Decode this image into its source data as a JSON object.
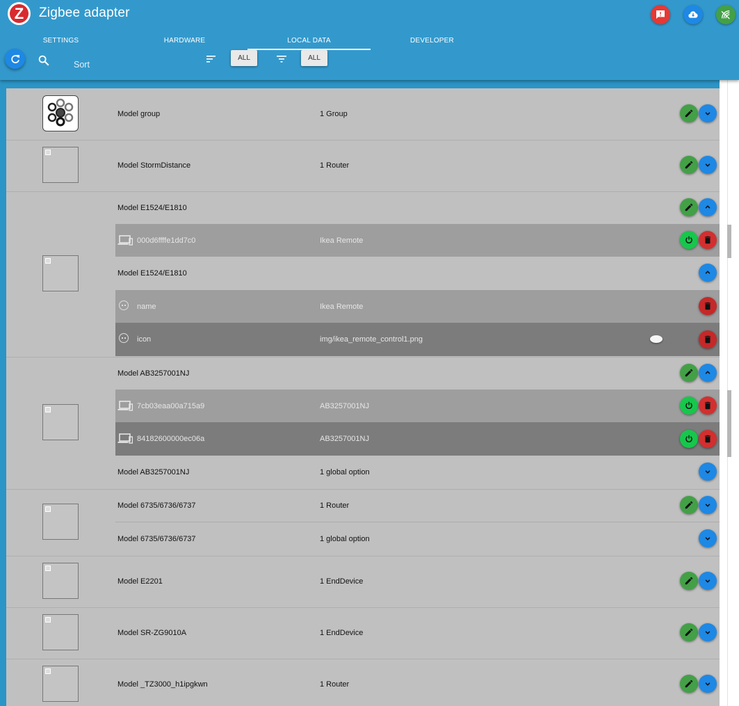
{
  "app": {
    "title": "Zigbee adapter",
    "logo_letter": "Z",
    "header_buttons": [
      {
        "name": "issue-report-icon",
        "color": "#e53935"
      },
      {
        "name": "cloud-download-icon",
        "color": "#1e88e5"
      },
      {
        "name": "signal-strength-icon",
        "color": "#43a047"
      }
    ]
  },
  "tabs": [
    "Settings",
    "Hardware",
    "Local Data",
    "Developer"
  ],
  "active_tab": "Local Data",
  "toolbar": {
    "sort_placeholder": "Sort",
    "filter_chip_1": "ALL",
    "filter_chip_2": "ALL"
  },
  "colors": {
    "header": "#3399cc",
    "edit_button": "#43a047",
    "expand_button": "#1e88e5",
    "power_button": "#16c74c",
    "delete_button": "#d32f2f",
    "row_background": "#c0c0c0",
    "device_row_light": "#9e9e9e",
    "device_row_dark": "#7c7c7c"
  },
  "groups": [
    {
      "model": "Model group",
      "info": "1 Group",
      "image": "group-icon",
      "expanded": false
    },
    {
      "model": "Model StormDistance",
      "info": "1 Router",
      "image": "broken-image",
      "expanded": false
    },
    {
      "model": "Model E1524/E1810",
      "info": "",
      "image": "broken-image",
      "expanded": true,
      "devices": [
        {
          "id": "000d6ffffe1dd7c0",
          "info": "Ikea Remote"
        }
      ],
      "options_header": "Model E1524/E1810",
      "options": [
        {
          "key": "name",
          "value": "Ikea Remote"
        },
        {
          "key": "icon",
          "value": "img/ikea_remote_control1.png"
        }
      ]
    },
    {
      "model": "Model AB3257001NJ",
      "info": "",
      "image": "broken-image",
      "expanded": true,
      "devices": [
        {
          "id": "7cb03eaa00a715a9",
          "info": "AB3257001NJ"
        },
        {
          "id": "84182600000ec06a",
          "info": "AB3257001NJ"
        }
      ],
      "footer": {
        "model": "Model AB3257001NJ",
        "info": "1 global option"
      }
    },
    {
      "model": "Model 6735/6736/6737",
      "info": "1 Router",
      "image": "broken-image",
      "expanded": false,
      "footer": {
        "model": "Model 6735/6736/6737",
        "info": "1 global option"
      }
    },
    {
      "model": "Model E2201",
      "info": "1 EndDevice",
      "image": "broken-image",
      "expanded": false
    },
    {
      "model": "Model SR-ZG9010A",
      "info": "1 EndDevice",
      "image": "broken-image",
      "expanded": false
    },
    {
      "model": "Model _TZ3000_h1ipgkwn",
      "info": "1 Router",
      "image": "broken-image",
      "expanded": false
    }
  ]
}
